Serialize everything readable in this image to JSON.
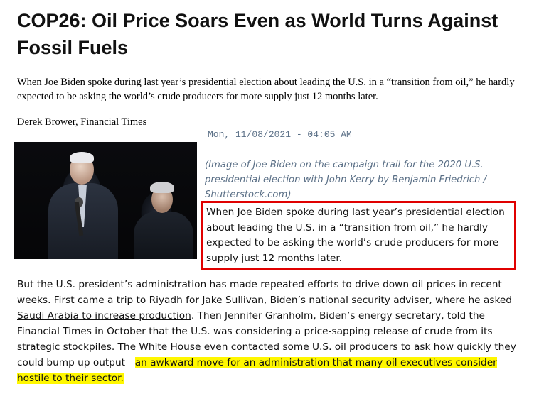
{
  "article": {
    "headline": "COP26: Oil Price Soars Even as World Turns Against Fossil Fuels",
    "summary": "When Joe Biden spoke during last year’s presidential election about leading the U.S. in a “transition from oil,” he hardly expected to be asking the world’s crude producers for more supply just 12 months later.",
    "author": "Derek Brower, Financial Times",
    "date": "Mon, 11/08/2021 - 04:05 AM",
    "image": {
      "caption": "(Image of Joe Biden on the campaign trail for the 2020 U.S. presidential election with John Kerry by Benjamin Friedrich / Shutterstock.com)"
    },
    "lede": "When Joe Biden spoke during last year’s presidential election about leading the U.S. in a “transition from oil,” he hardly expected to be asking the world’s crude producers for more supply just 12 months later.",
    "body": {
      "part1": "But the U.S. president’s administration has made repeated efforts to drive down oil prices in recent weeks. First came a trip to Riyadh for Jake Sullivan, Biden’s national security adviser",
      "link1": ", where he asked Saudi Arabia to increase production",
      "part2": ". Then Jennifer Granholm, Biden’s energy secretary, told the Financial Times in October that the U.S. was considering a price-sapping release of crude from its strategic stockpiles. The ",
      "link2": "White House even contacted some U.S. oil producers",
      "part3": " to ask how quickly they could bump up output—",
      "highlight": "an awkward move for an administration that many oil executives consider hostile to their sector."
    }
  },
  "colors": {
    "highlight": "#fff700",
    "box_border": "#e00000",
    "caption_text": "#5a6f86"
  }
}
